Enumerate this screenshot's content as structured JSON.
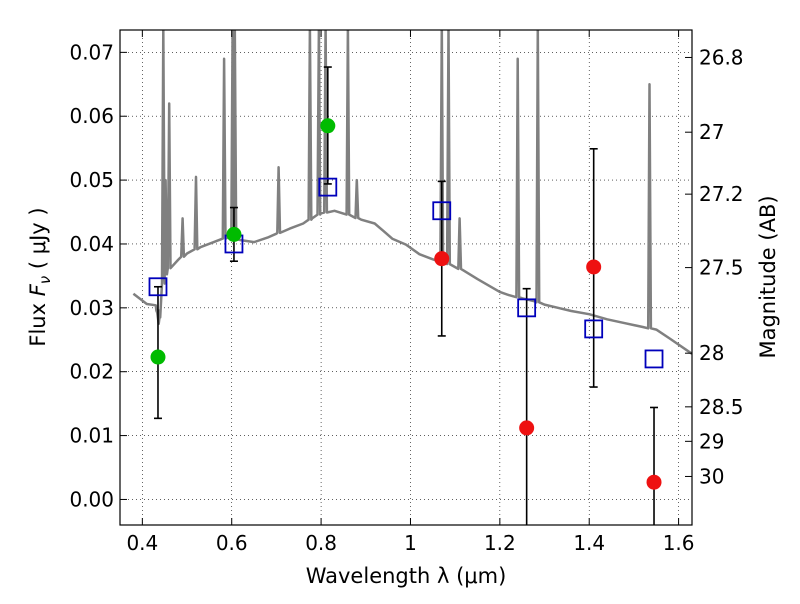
{
  "chart_data": {
    "type": "scatter",
    "title": "",
    "xlabel": "Wavelength  λ (μm)",
    "ylabel_parts": [
      "Flux  ",
      "F",
      "ν",
      "  (  μJy  )"
    ],
    "y2label": "Magnitude (AB)",
    "xlim": [
      0.35,
      1.63
    ],
    "ylim": [
      -0.004,
      0.0735
    ],
    "grid": true,
    "xticks": [
      0.4,
      0.6,
      0.8,
      1.0,
      1.2,
      1.4,
      1.6
    ],
    "xtick_labels": [
      "0.4",
      "0.6",
      "0.8",
      "1",
      "1.2",
      "1.4",
      "1.6"
    ],
    "yticks": [
      0.0,
      0.01,
      0.02,
      0.03,
      0.04,
      0.05,
      0.06,
      0.07
    ],
    "ytick_labels": [
      "0.00",
      "0.01",
      "0.02",
      "0.03",
      "0.04",
      "0.05",
      "0.06",
      "0.07"
    ],
    "mag_ticks": [
      {
        "label": "26.8",
        "flux": 0.0692
      },
      {
        "label": "27",
        "flux": 0.0575
      },
      {
        "label": "27.2",
        "flux": 0.0478
      },
      {
        "label": "27.5",
        "flux": 0.0363
      },
      {
        "label": "28",
        "flux": 0.0229
      },
      {
        "label": "28.5",
        "flux": 0.0145
      },
      {
        "label": "29",
        "flux": 0.0091
      },
      {
        "label": "30",
        "flux": 0.0036
      }
    ],
    "colors": {
      "spectrum": "#808080",
      "model_box": "#0000bb",
      "detection": "#00bb00",
      "nondetection": "#ee1111",
      "errorbar": "#000000",
      "grid": "#000000"
    },
    "spectrum": {
      "continuum": [
        [
          0.35,
          0.0328
        ],
        [
          0.38,
          0.0322
        ],
        [
          0.41,
          0.0306
        ],
        [
          0.43,
          0.0304
        ],
        [
          0.44,
          0.0285
        ],
        [
          0.445,
          0.033
        ],
        [
          0.45,
          0.035
        ],
        [
          0.46,
          0.0362
        ],
        [
          0.48,
          0.0375
        ],
        [
          0.5,
          0.0385
        ],
        [
          0.53,
          0.0395
        ],
        [
          0.56,
          0.0403
        ],
        [
          0.59,
          0.041
        ],
        [
          0.62,
          0.0406
        ],
        [
          0.65,
          0.0403
        ],
        [
          0.68,
          0.041
        ],
        [
          0.7,
          0.0416
        ],
        [
          0.73,
          0.0424
        ],
        [
          0.76,
          0.0432
        ],
        [
          0.78,
          0.044
        ],
        [
          0.8,
          0.0448
        ],
        [
          0.83,
          0.0452
        ],
        [
          0.86,
          0.0446
        ],
        [
          0.89,
          0.0438
        ],
        [
          0.92,
          0.0432
        ],
        [
          0.94,
          0.042
        ],
        [
          0.96,
          0.0408
        ],
        [
          0.99,
          0.0399
        ],
        [
          1.02,
          0.0384
        ],
        [
          1.05,
          0.0376
        ],
        [
          1.08,
          0.037
        ],
        [
          1.12,
          0.0358
        ],
        [
          1.15,
          0.0345
        ],
        [
          1.18,
          0.0333
        ],
        [
          1.2,
          0.0325
        ],
        [
          1.22,
          0.032
        ],
        [
          1.25,
          0.0315
        ],
        [
          1.28,
          0.031
        ],
        [
          1.3,
          0.0305
        ],
        [
          1.33,
          0.03
        ],
        [
          1.36,
          0.0295
        ],
        [
          1.4,
          0.029
        ],
        [
          1.44,
          0.0282
        ],
        [
          1.48,
          0.0276
        ],
        [
          1.52,
          0.027
        ],
        [
          1.55,
          0.0266
        ],
        [
          1.58,
          0.0252
        ],
        [
          1.63,
          0.0228
        ]
      ],
      "lines": [
        {
          "x": 0.4345,
          "peak": 0.029
        },
        {
          "x": 0.4365,
          "peak": 0.0275
        },
        {
          "x": 0.447,
          "peak": 0.074
        },
        {
          "x": 0.452,
          "peak": 0.05
        },
        {
          "x": 0.46,
          "peak": 0.062
        },
        {
          "x": 0.49,
          "peak": 0.044
        },
        {
          "x": 0.52,
          "peak": 0.0505
        },
        {
          "x": 0.583,
          "peak": 0.069
        },
        {
          "x": 0.602,
          "peak": 0.074
        },
        {
          "x": 0.607,
          "peak": 0.074
        },
        {
          "x": 0.705,
          "peak": 0.052
        },
        {
          "x": 0.775,
          "peak": 0.074
        },
        {
          "x": 0.795,
          "peak": 0.074
        },
        {
          "x": 0.81,
          "peak": 0.074
        },
        {
          "x": 0.86,
          "peak": 0.074
        },
        {
          "x": 0.88,
          "peak": 0.05
        },
        {
          "x": 1.07,
          "peak": 0.074
        },
        {
          "x": 1.085,
          "peak": 0.074
        },
        {
          "x": 1.11,
          "peak": 0.044
        },
        {
          "x": 1.24,
          "peak": 0.069
        },
        {
          "x": 1.285,
          "peak": 0.074
        },
        {
          "x": 1.535,
          "peak": 0.065
        }
      ]
    },
    "model_points": [
      {
        "x": 0.435,
        "y": 0.0333
      },
      {
        "x": 0.605,
        "y": 0.04
      },
      {
        "x": 0.815,
        "y": 0.0489
      },
      {
        "x": 1.07,
        "y": 0.0452
      },
      {
        "x": 1.26,
        "y": 0.03
      },
      {
        "x": 1.41,
        "y": 0.0267
      },
      {
        "x": 1.545,
        "y": 0.022
      }
    ],
    "detections": [
      {
        "x": 0.435,
        "y": 0.0223,
        "yerr_low": 0.0127,
        "yerr_high": 0.0333
      },
      {
        "x": 0.605,
        "y": 0.0415,
        "yerr_low": 0.0373,
        "yerr_high": 0.0457
      },
      {
        "x": 0.815,
        "y": 0.0585,
        "yerr_low": 0.0494,
        "yerr_high": 0.0677
      }
    ],
    "nondetections": [
      {
        "x": 1.07,
        "y": 0.0377,
        "yerr_low": 0.0256,
        "yerr_high": 0.0498
      },
      {
        "x": 1.26,
        "y": 0.0112,
        "yerr_low": -0.006,
        "yerr_high": 0.033
      },
      {
        "x": 1.41,
        "y": 0.0364,
        "yerr_low": 0.0176,
        "yerr_high": 0.0549
      },
      {
        "x": 1.545,
        "y": 0.0027,
        "yerr_low": -0.006,
        "yerr_high": 0.0144
      }
    ]
  }
}
